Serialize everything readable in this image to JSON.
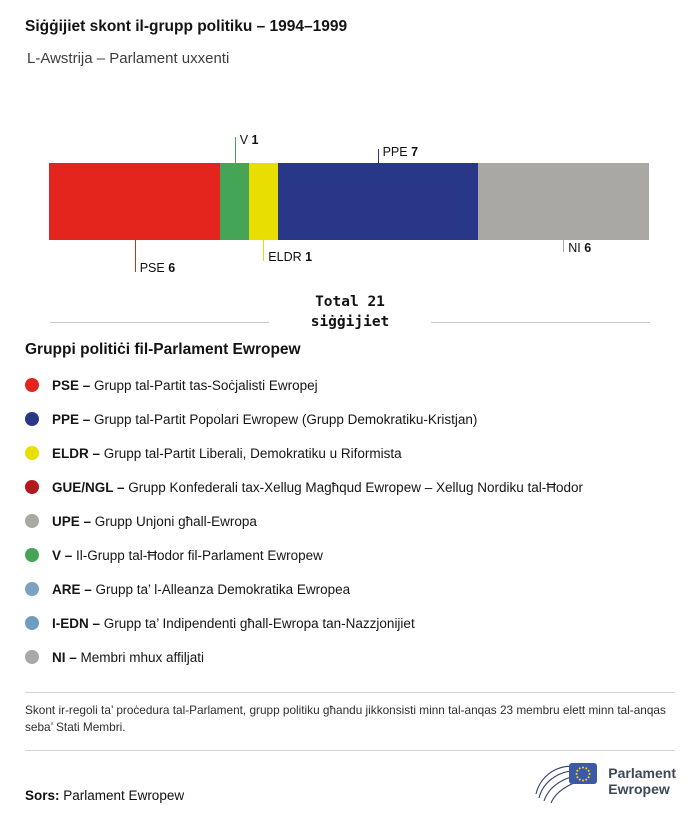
{
  "header": {
    "title": "Siġġijiet skont il-grupp politiku – 1994–1999",
    "subtitle": "L-Awstrija – Parlament uxxenti"
  },
  "chart_data": {
    "type": "bar",
    "orientation": "horizontal-stacked",
    "title": "Siġġijiet skont il-grupp politiku – 1994–1999",
    "subtitle": "L-Awstrija – Parlament uxxenti",
    "total": 21,
    "total_line1": "Total 21",
    "total_line2": "siġġijiet",
    "categories": [
      "PSE",
      "V",
      "ELDR",
      "PPE",
      "NI"
    ],
    "values": [
      6,
      1,
      1,
      7,
      6
    ],
    "segments": [
      {
        "group": "PSE",
        "seats": 6,
        "color": "#e3251d",
        "label_position": "below",
        "callout_length": 32
      },
      {
        "group": "V",
        "seats": 1,
        "color": "#45a456",
        "label_position": "above",
        "callout_length": 26
      },
      {
        "group": "ELDR",
        "seats": 1,
        "color": "#e8df00",
        "label_position": "below",
        "callout_length": 21
      },
      {
        "group": "PPE",
        "seats": 7,
        "color": "#293789",
        "label_position": "above",
        "callout_length": 14
      },
      {
        "group": "NI",
        "seats": 6,
        "color": "#a9a8a4",
        "label_position": "below",
        "callout_length": 12
      }
    ],
    "legend_position": "below",
    "grid": false
  },
  "legend": {
    "title": "Gruppi politiċi fil-Parlament Ewropew",
    "items": [
      {
        "abbr": "PSE",
        "desc": "Grupp tal-Partit tas-Soċjalisti Ewropej",
        "color": "#e3251d"
      },
      {
        "abbr": "PPE",
        "desc": "Grupp tal-Partit Popolari Ewropew (Grupp Demokratiku-Kristjan)",
        "color": "#293789"
      },
      {
        "abbr": "ELDR",
        "desc": "Grupp tal-Partit Liberali, Demokratiku u Riformista",
        "color": "#e8df00"
      },
      {
        "abbr": "GUE/NGL",
        "desc": "Grupp Konfederali tax-Xellug Magħqud Ewropew – Xellug Nordiku tal-Ħodor",
        "color": "#b2181d"
      },
      {
        "abbr": "UPE",
        "desc": "Grupp Unjoni għall-Ewropa",
        "color": "#a9a8a4"
      },
      {
        "abbr": "V",
        "desc": "Il-Grupp tal-Ħodor fil-Parlament Ewropew",
        "color": "#45a456"
      },
      {
        "abbr": "ARE",
        "desc": "Grupp ta’ l-Alleanza Demokratika Ewropea",
        "color": "#7aa2c2"
      },
      {
        "abbr": "I-EDN",
        "desc": "Grupp ta’ Indipendenti għall-Ewropa tan-Nazzjonijiet",
        "color": "#6f9dbf"
      },
      {
        "abbr": "NI",
        "desc": "Membri mhux affiljati",
        "color": "#a9a8a4"
      }
    ]
  },
  "footnote": "Skont ir-regoli ta’ proċedura tal-Parlament, grupp politiku għandu jikkonsisti minn tal-anqas 23 membru elett minn tal-anqas seba’ Stati Membri.",
  "footer": {
    "source_label": "Sors:",
    "source": "Parlament Ewropew",
    "logo_line1": "Parlament",
    "logo_line2": "Ewropew"
  }
}
